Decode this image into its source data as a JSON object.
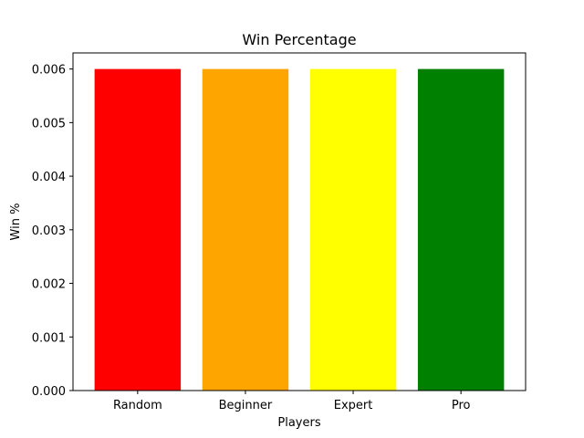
{
  "chart_data": {
    "type": "bar",
    "title": "Win Percentage",
    "xlabel": "Players",
    "ylabel": "Win %",
    "categories": [
      "Random",
      "Beginner",
      "Expert",
      "Pro"
    ],
    "values": [
      0.006,
      0.006,
      0.006,
      0.006
    ],
    "colors": [
      "#ff0000",
      "#ffa500",
      "#ffff00",
      "#008000"
    ],
    "ylim": [
      0,
      0.0063
    ],
    "yticks": [
      "0.000",
      "0.001",
      "0.002",
      "0.003",
      "0.004",
      "0.005",
      "0.006"
    ],
    "ytick_values": [
      0,
      0.001,
      0.002,
      0.003,
      0.004,
      0.005,
      0.006
    ],
    "grid": false,
    "legend": "none"
  }
}
